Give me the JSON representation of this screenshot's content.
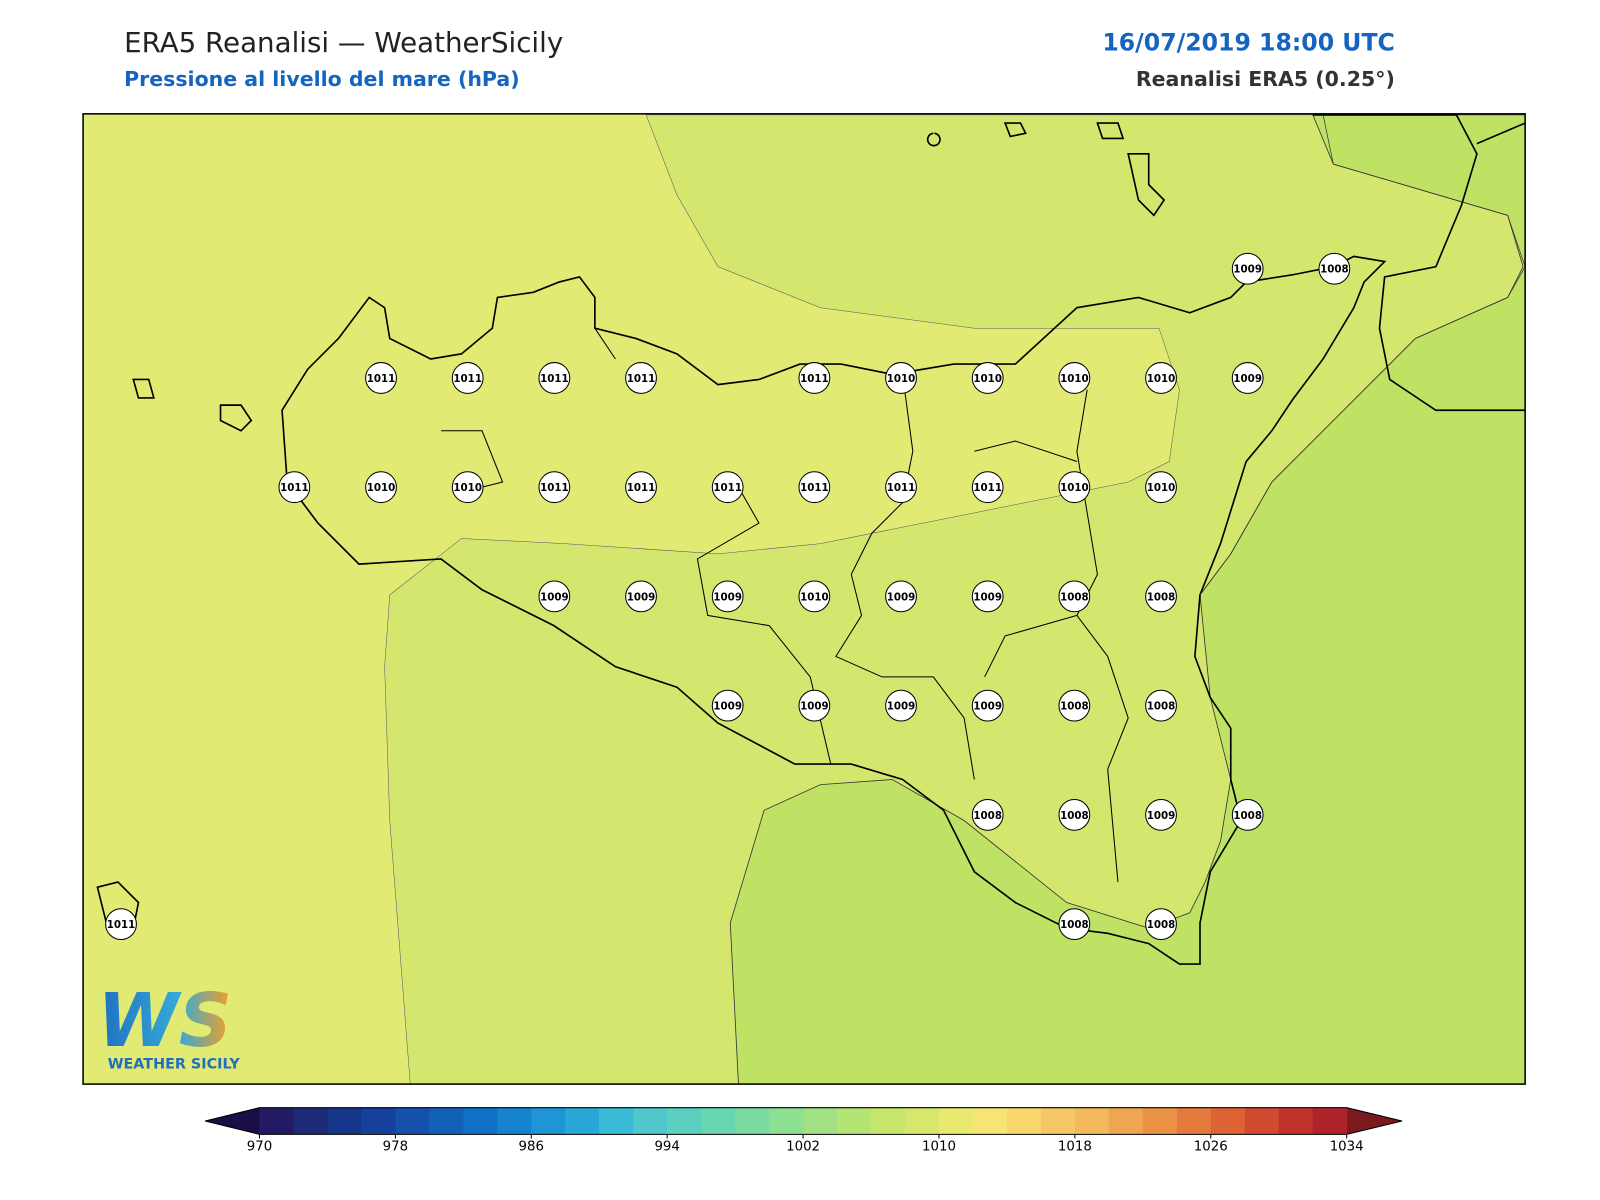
{
  "header": {
    "title": "ERA5 Reanalisi — WeatherSicily",
    "subtitle": "Pressione al livello del mare (hPa)",
    "datetime": "16/07/2019 18:00 UTC",
    "source": "Reanalisi ERA5 (0.25°)"
  },
  "map": {
    "stations": [
      [
        null,
        null,
        null,
        null,
        null,
        null,
        null,
        null,
        null,
        null,
        null,
        null,
        null,
        1009,
        1008
      ],
      [
        null,
        null,
        null,
        1011,
        1011,
        1011,
        1011,
        null,
        1011,
        1010,
        1010,
        1010,
        1010,
        1009,
        null
      ],
      [
        null,
        null,
        1011,
        1010,
        1010,
        1011,
        1011,
        1011,
        1011,
        1011,
        1011,
        1010,
        1010,
        null,
        null
      ],
      [
        null,
        null,
        null,
        null,
        null,
        1009,
        1009,
        1009,
        1010,
        1009,
        1009,
        1008,
        1008,
        null,
        null
      ],
      [
        null,
        null,
        null,
        null,
        null,
        null,
        null,
        1009,
        1009,
        1009,
        1009,
        1008,
        1008,
        null,
        null
      ],
      [
        null,
        null,
        null,
        null,
        null,
        null,
        null,
        null,
        null,
        null,
        1008,
        1008,
        1009,
        1008,
        null
      ],
      [
        1011,
        null,
        null,
        null,
        null,
        null,
        null,
        null,
        null,
        null,
        null,
        1008,
        1008,
        null,
        null
      ]
    ]
  },
  "colorbar": {
    "range": [
      970,
      1034
    ],
    "ticks": [
      970,
      978,
      986,
      994,
      1002,
      1010,
      1018,
      1026,
      1034
    ],
    "colors": [
      "#221a63",
      "#1d2a78",
      "#17358a",
      "#16419a",
      "#1550aa",
      "#1260b8",
      "#0f70c6",
      "#1482cf",
      "#1e95d5",
      "#29a8d8",
      "#3bbcd6",
      "#4fc7cc",
      "#5ccfbe",
      "#68d6b0",
      "#79dba1",
      "#8ddf92",
      "#a1e183",
      "#b4e474",
      "#c7e66c",
      "#d8e76c",
      "#e8ea70",
      "#f6e474",
      "#f8d86c",
      "#f6c865",
      "#f3b85c",
      "#efa551",
      "#eb9247",
      "#e47b3d",
      "#dd6234",
      "#d04a2f",
      "#c0322c",
      "#ae222a"
    ],
    "under_color": "#1a0e45",
    "over_color": "#7b1a1e"
  },
  "logo": {
    "mark": "WS",
    "text": "WEATHER SICILY"
  }
}
